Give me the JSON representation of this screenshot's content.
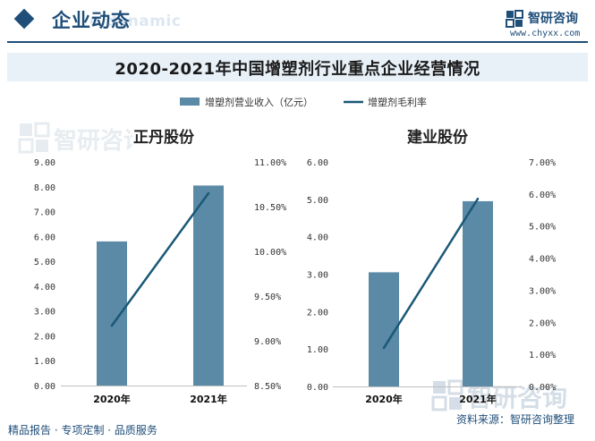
{
  "header": {
    "section_title": "企业动态",
    "section_subtitle": "e dynamic",
    "brand_name": "智研咨询",
    "brand_url": "www.chyxx.com",
    "brand_logo_icon": "zhiyan-logo-icon"
  },
  "footer": {
    "left_text": "精品报告 · 专项定制 · 品质服务",
    "source_text": "资料来源：智研咨询整理"
  },
  "watermark": {
    "text": "智研咨询"
  },
  "colors": {
    "brand": "#1f4e79",
    "bar": "#5b8aa6",
    "line": "#1a5878",
    "title_band": "#e8f1f8"
  },
  "chart_data": {
    "type": "bar",
    "title": "2020-2021年中国增塑剂行业重点企业经营情况",
    "legend": {
      "placement": "top-center"
    },
    "series_meta": [
      {
        "name": "增塑剂营业收入（亿元）",
        "type": "bar",
        "axis": "left",
        "color": "#5b8aa6"
      },
      {
        "name": "增塑剂毛利率",
        "type": "line",
        "axis": "right",
        "color": "#1a5878"
      }
    ],
    "panels": [
      {
        "name": "正丹股份",
        "categories": [
          "2020年",
          "2021年"
        ],
        "revenue": [
          5.8,
          8.05
        ],
        "gross_margin": [
          9.17,
          10.65
        ],
        "left_ticks": [
          "9.00",
          "8.00",
          "7.00",
          "6.00",
          "5.00",
          "4.00",
          "3.00",
          "2.00",
          "1.00",
          "0.00"
        ],
        "right_ticks": [
          "11.00%",
          "10.50%",
          "10.00%",
          "9.50%",
          "9.00%",
          "8.50%"
        ],
        "left_range": [
          0,
          9
        ],
        "right_range": [
          8.5,
          11
        ]
      },
      {
        "name": "建业股份",
        "categories": [
          "2020年",
          "2021年"
        ],
        "revenue": [
          3.05,
          4.95
        ],
        "gross_margin": [
          1.2,
          5.85
        ],
        "left_ticks": [
          "6.00",
          "5.00",
          "4.00",
          "3.00",
          "2.00",
          "1.00",
          "0.00"
        ],
        "right_ticks": [
          "7.00%",
          "6.00%",
          "5.00%",
          "4.00%",
          "3.00%",
          "2.00%",
          "1.00%",
          "0.00%"
        ],
        "left_range": [
          0,
          6
        ],
        "right_range": [
          0,
          7
        ]
      }
    ]
  }
}
